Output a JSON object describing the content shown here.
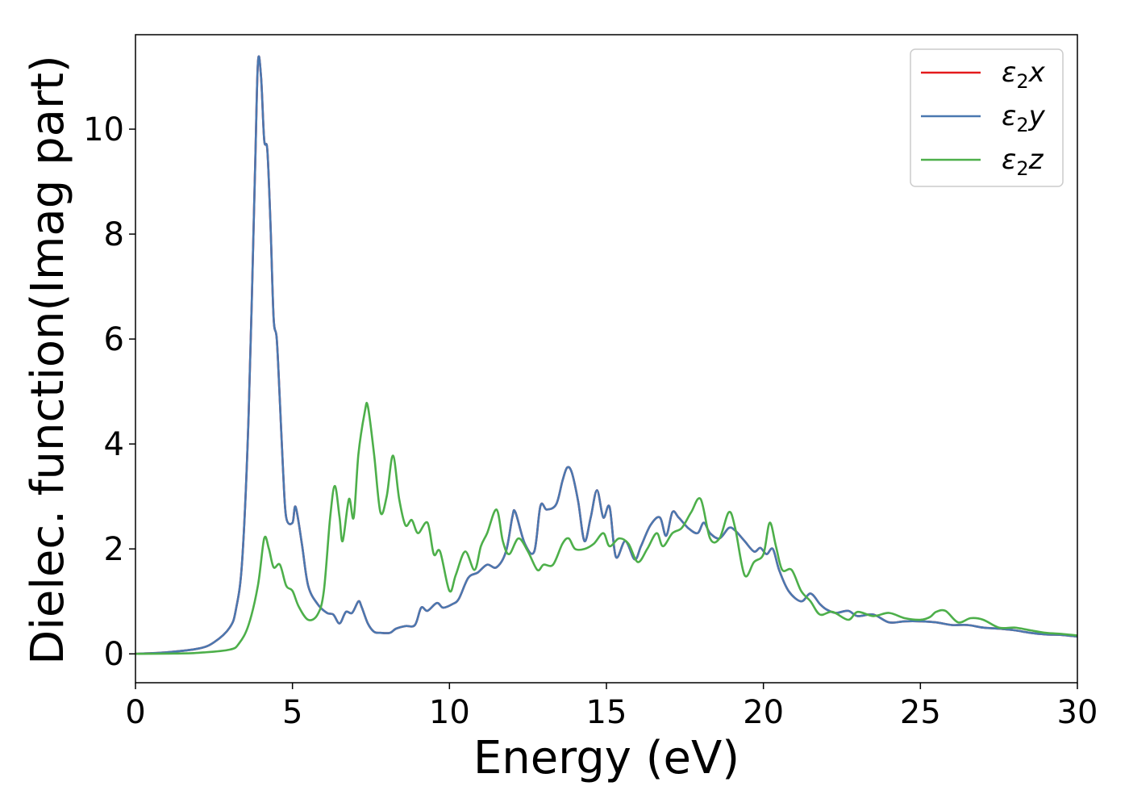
{
  "chart_data": {
    "type": "line",
    "xlabel": "Energy (eV)",
    "ylabel": "Dielec. function(Imag part)",
    "xlim": [
      0,
      30
    ],
    "ylim": [
      -0.55,
      11.8
    ],
    "xticks": [
      0,
      5,
      10,
      15,
      20,
      25,
      30
    ],
    "yticks": [
      0,
      2,
      4,
      6,
      8,
      10
    ],
    "grid": false,
    "legend_position": "top-right",
    "series": [
      {
        "name": "ε₂x",
        "legend": {
          "base": "ε",
          "sub": "2",
          "suffix": "x"
        },
        "color": "#e41a1c",
        "x": [
          0,
          1,
          2,
          2.5,
          3,
          3.2,
          3.4,
          3.6,
          3.8,
          3.9,
          4.0,
          4.1,
          4.2,
          4.3,
          4.4,
          4.5,
          4.6,
          4.7,
          4.8,
          5.0,
          5.1,
          5.3,
          5.5,
          5.8,
          6.1,
          6.3,
          6.5,
          6.7,
          6.9,
          7.1,
          7.2,
          7.4,
          7.6,
          7.8,
          8.1,
          8.3,
          8.6,
          8.9,
          9.1,
          9.3,
          9.6,
          9.8,
          10.1,
          10.3,
          10.6,
          10.9,
          11.2,
          11.5,
          11.8,
          12.0,
          12.1,
          12.4,
          12.7,
          12.9,
          13.1,
          13.4,
          13.6,
          13.75,
          13.9,
          14.1,
          14.3,
          14.5,
          14.7,
          14.9,
          15.1,
          15.3,
          15.6,
          15.9,
          16.1,
          16.4,
          16.7,
          16.9,
          17.1,
          17.3,
          17.6,
          17.9,
          18.1,
          18.3,
          18.6,
          18.9,
          19.1,
          19.4,
          19.7,
          19.9,
          20.1,
          20.3,
          20.5,
          20.8,
          21.2,
          21.5,
          21.8,
          22.0,
          22.3,
          22.7,
          23.0,
          23.5,
          24.0,
          24.5,
          25.0,
          25.5,
          26.0,
          26.5,
          27.0,
          27.5,
          28.0,
          28.5,
          29.0,
          29.5,
          30.0
        ],
        "y": [
          0,
          0.03,
          0.1,
          0.22,
          0.5,
          0.85,
          1.8,
          4.5,
          9.0,
          11.25,
          11.0,
          9.8,
          9.6,
          8.2,
          6.4,
          6.0,
          4.8,
          3.5,
          2.6,
          2.5,
          2.8,
          2.1,
          1.3,
          0.95,
          0.78,
          0.75,
          0.58,
          0.8,
          0.78,
          1.0,
          0.9,
          0.58,
          0.42,
          0.4,
          0.4,
          0.48,
          0.53,
          0.55,
          0.88,
          0.82,
          0.97,
          0.88,
          0.95,
          1.05,
          1.45,
          1.55,
          1.7,
          1.65,
          1.95,
          2.6,
          2.7,
          2.1,
          1.95,
          2.82,
          2.75,
          2.85,
          3.3,
          3.55,
          3.45,
          2.9,
          2.15,
          2.6,
          3.12,
          2.6,
          2.8,
          1.85,
          2.15,
          1.8,
          2.05,
          2.45,
          2.6,
          2.25,
          2.7,
          2.6,
          2.4,
          2.3,
          2.5,
          2.3,
          2.2,
          2.4,
          2.35,
          2.15,
          1.95,
          2.02,
          1.9,
          2.0,
          1.6,
          1.2,
          1.0,
          1.15,
          0.95,
          0.85,
          0.78,
          0.82,
          0.72,
          0.75,
          0.6,
          0.62,
          0.62,
          0.6,
          0.55,
          0.55,
          0.5,
          0.48,
          0.45,
          0.4,
          0.37,
          0.36,
          0.33
        ]
      },
      {
        "name": "ε₂y",
        "legend": {
          "base": "ε",
          "sub": "2",
          "suffix": "y"
        },
        "color": "#4a78b0",
        "x": [
          0,
          1,
          2,
          2.5,
          3,
          3.2,
          3.4,
          3.6,
          3.8,
          3.9,
          4.0,
          4.1,
          4.2,
          4.3,
          4.4,
          4.5,
          4.6,
          4.7,
          4.8,
          5.0,
          5.1,
          5.3,
          5.5,
          5.8,
          6.1,
          6.3,
          6.5,
          6.7,
          6.9,
          7.1,
          7.2,
          7.4,
          7.6,
          7.8,
          8.1,
          8.3,
          8.6,
          8.9,
          9.1,
          9.3,
          9.6,
          9.8,
          10.1,
          10.3,
          10.6,
          10.9,
          11.2,
          11.5,
          11.8,
          12.0,
          12.1,
          12.4,
          12.7,
          12.9,
          13.1,
          13.4,
          13.6,
          13.75,
          13.9,
          14.1,
          14.3,
          14.5,
          14.7,
          14.9,
          15.1,
          15.3,
          15.6,
          15.9,
          16.1,
          16.4,
          16.7,
          16.9,
          17.1,
          17.3,
          17.6,
          17.9,
          18.1,
          18.3,
          18.6,
          18.9,
          19.1,
          19.4,
          19.7,
          19.9,
          20.1,
          20.3,
          20.5,
          20.8,
          21.2,
          21.5,
          21.8,
          22.0,
          22.3,
          22.7,
          23.0,
          23.5,
          24.0,
          24.5,
          25.0,
          25.5,
          26.0,
          26.5,
          27.0,
          27.5,
          28.0,
          28.5,
          29.0,
          29.5,
          30.0
        ],
        "y": [
          0,
          0.03,
          0.1,
          0.22,
          0.5,
          0.85,
          1.8,
          4.5,
          9.0,
          11.25,
          11.0,
          9.8,
          9.6,
          8.2,
          6.4,
          6.0,
          4.8,
          3.5,
          2.6,
          2.5,
          2.8,
          2.1,
          1.3,
          0.95,
          0.78,
          0.75,
          0.58,
          0.8,
          0.78,
          1.0,
          0.9,
          0.58,
          0.42,
          0.4,
          0.4,
          0.48,
          0.53,
          0.55,
          0.88,
          0.82,
          0.97,
          0.88,
          0.95,
          1.05,
          1.45,
          1.55,
          1.7,
          1.65,
          1.95,
          2.6,
          2.7,
          2.1,
          1.95,
          2.82,
          2.75,
          2.85,
          3.3,
          3.55,
          3.45,
          2.9,
          2.15,
          2.6,
          3.12,
          2.6,
          2.8,
          1.85,
          2.15,
          1.8,
          2.05,
          2.45,
          2.6,
          2.25,
          2.7,
          2.6,
          2.4,
          2.3,
          2.5,
          2.3,
          2.2,
          2.4,
          2.35,
          2.15,
          1.95,
          2.02,
          1.9,
          2.0,
          1.6,
          1.2,
          1.0,
          1.15,
          0.95,
          0.85,
          0.78,
          0.82,
          0.72,
          0.75,
          0.6,
          0.62,
          0.62,
          0.6,
          0.55,
          0.55,
          0.5,
          0.48,
          0.45,
          0.4,
          0.37,
          0.36,
          0.33
        ]
      },
      {
        "name": "ε₂z",
        "legend": {
          "base": "ε",
          "sub": "2",
          "suffix": "z"
        },
        "color": "#4daf4a",
        "x": [
          0,
          1,
          2,
          3,
          3.3,
          3.6,
          3.9,
          4.1,
          4.25,
          4.4,
          4.6,
          4.8,
          5.0,
          5.2,
          5.5,
          5.8,
          6.0,
          6.2,
          6.35,
          6.5,
          6.6,
          6.8,
          6.95,
          7.1,
          7.3,
          7.4,
          7.6,
          7.8,
          8.0,
          8.2,
          8.4,
          8.6,
          8.8,
          9.0,
          9.3,
          9.5,
          9.7,
          10.0,
          10.2,
          10.5,
          10.8,
          11.0,
          11.2,
          11.5,
          11.7,
          11.9,
          12.2,
          12.5,
          12.8,
          13.0,
          13.3,
          13.6,
          13.8,
          14.0,
          14.3,
          14.6,
          14.9,
          15.1,
          15.4,
          15.7,
          16.0,
          16.3,
          16.6,
          16.8,
          17.1,
          17.4,
          17.7,
          18.0,
          18.3,
          18.6,
          18.9,
          19.1,
          19.4,
          19.7,
          20.0,
          20.2,
          20.4,
          20.6,
          20.9,
          21.2,
          21.5,
          21.8,
          22.2,
          22.7,
          23.0,
          23.5,
          24.0,
          24.5,
          25.0,
          25.3,
          25.5,
          25.8,
          26.2,
          26.6,
          27.0,
          27.5,
          28.0,
          28.5,
          29.0,
          29.5,
          30.0
        ],
        "y": [
          0,
          0.005,
          0.02,
          0.08,
          0.2,
          0.55,
          1.3,
          2.2,
          2.0,
          1.65,
          1.7,
          1.3,
          1.2,
          0.9,
          0.65,
          0.75,
          1.2,
          2.6,
          3.2,
          2.6,
          2.15,
          2.95,
          2.6,
          3.8,
          4.6,
          4.72,
          3.8,
          2.7,
          3.0,
          3.78,
          2.95,
          2.45,
          2.55,
          2.3,
          2.5,
          1.9,
          1.95,
          1.2,
          1.5,
          1.95,
          1.6,
          2.05,
          2.3,
          2.75,
          2.15,
          1.9,
          2.2,
          1.95,
          1.6,
          1.7,
          1.7,
          2.1,
          2.2,
          2.0,
          2.0,
          2.1,
          2.3,
          2.05,
          2.2,
          2.1,
          1.75,
          2.0,
          2.3,
          2.05,
          2.3,
          2.4,
          2.7,
          2.95,
          2.2,
          2.2,
          2.7,
          2.4,
          1.5,
          1.75,
          1.9,
          2.5,
          2.05,
          1.6,
          1.6,
          1.2,
          1.0,
          0.75,
          0.8,
          0.65,
          0.8,
          0.72,
          0.78,
          0.68,
          0.65,
          0.7,
          0.8,
          0.82,
          0.6,
          0.68,
          0.65,
          0.5,
          0.5,
          0.45,
          0.4,
          0.38,
          0.35
        ]
      }
    ]
  }
}
